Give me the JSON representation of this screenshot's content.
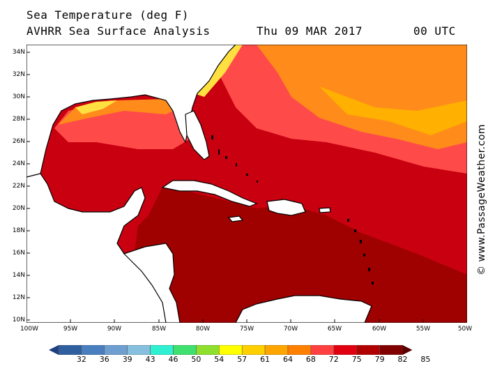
{
  "header": {
    "title": "Sea Temperature (deg F)",
    "subtitle": "AVHRR Sea Surface Analysis",
    "date": "Thu 09 MAR 2017",
    "time": "00 UTC"
  },
  "map": {
    "lat_labels": [
      "34N",
      "32N",
      "30N",
      "28N",
      "26N",
      "24N",
      "22N",
      "20N",
      "18N",
      "16N",
      "14N",
      "12N",
      "10N"
    ],
    "lon_labels": [
      "100W",
      "95W",
      "90W",
      "85W",
      "80W",
      "75W",
      "70W",
      "65W",
      "60W",
      "55W",
      "50W"
    ],
    "credit": "© www.PassageWeather.com"
  },
  "legend": {
    "values": [
      "32",
      "36",
      "39",
      "43",
      "46",
      "50",
      "54",
      "57",
      "61",
      "64",
      "68",
      "72",
      "75",
      "79",
      "82",
      "85"
    ],
    "colors": [
      "#1f3f7f",
      "#2f5f9f",
      "#4a7fbf",
      "#6f9fd0",
      "#87bfdf",
      "#2ff0d0",
      "#3fe070",
      "#8fdf2f",
      "#ffff00",
      "#ffcf00",
      "#ffa500",
      "#ff7f00",
      "#ff4040",
      "#e00010",
      "#b00000",
      "#800000",
      "#5a0000"
    ]
  },
  "colors": {
    "land": "#ffffff",
    "outline": "#000000",
    "warm_dark": "#9f0000",
    "warm_red": "#d80010",
    "warm_lightred": "#ff4a4a",
    "orange": "#ff8c1a",
    "yellow_orange": "#ffb000",
    "yellow": "#ffe040"
  }
}
